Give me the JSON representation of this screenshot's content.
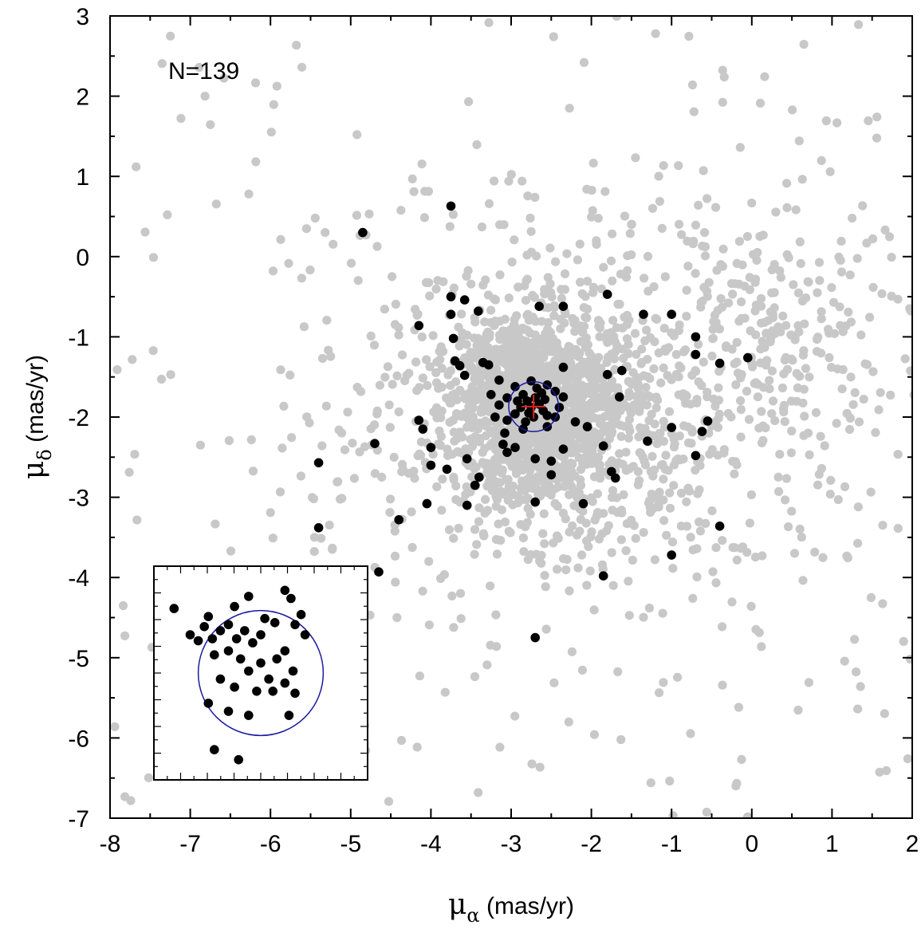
{
  "chart_data": {
    "type": "scatter",
    "title": "",
    "annotation": "N=139",
    "xlabel": {
      "symbol": "μ",
      "subscript": "α",
      "unit": " (mas/yr)"
    },
    "ylabel": {
      "symbol": "μ",
      "subscript": "δ",
      "unit": " (mas/yr)"
    },
    "xlim": [
      -8,
      2
    ],
    "ylim": [
      -7,
      3
    ],
    "xticks": [
      "-8",
      "-7",
      "-6",
      "-5",
      "-4",
      "-3",
      "-2",
      "-1",
      "0",
      "1",
      "2"
    ],
    "yticks": [
      "-7",
      "-6",
      "-5",
      "-4",
      "-3",
      "-2",
      "-1",
      "0",
      "1",
      "2",
      "3"
    ],
    "grid": false,
    "colors": {
      "field": "#c8c8c8",
      "members": "#000000",
      "circle": "#1a1aa0",
      "center": "#e02020"
    },
    "series": [
      {
        "role": "field stars",
        "approx_count": 2500,
        "distribution": "dense cloud centred near (-2.7, -1.9), broadly extending over the full axes range"
      },
      {
        "role": "members",
        "points": [
          [
            -3.75,
            0.63
          ],
          [
            -4.85,
            0.3
          ],
          [
            -3.75,
            -0.5
          ],
          [
            -3.58,
            -0.54
          ],
          [
            -3.41,
            -0.68
          ],
          [
            -2.65,
            -0.62
          ],
          [
            -2.35,
            -0.62
          ],
          [
            -1.8,
            -0.47
          ],
          [
            -1.35,
            -0.72
          ],
          [
            -1.0,
            -0.72
          ],
          [
            -4.15,
            -0.86
          ],
          [
            -3.75,
            -0.72
          ],
          [
            -3.72,
            -1.02
          ],
          [
            -3.7,
            -1.3
          ],
          [
            -3.64,
            -1.36
          ],
          [
            -3.35,
            -1.32
          ],
          [
            -3.58,
            -1.48
          ],
          [
            -3.28,
            -1.35
          ],
          [
            -2.35,
            -1.38
          ],
          [
            -1.62,
            -1.42
          ],
          [
            -1.8,
            -1.47
          ],
          [
            -0.7,
            -1.0
          ],
          [
            -0.7,
            -1.22
          ],
          [
            -0.4,
            -1.33
          ],
          [
            -0.05,
            -1.26
          ],
          [
            -3.15,
            -1.54
          ],
          [
            -3.25,
            -1.72
          ],
          [
            -3.05,
            -1.76
          ],
          [
            -2.95,
            -1.62
          ],
          [
            -3.15,
            -1.85
          ],
          [
            -3.2,
            -2.0
          ],
          [
            -3.05,
            -2.04
          ],
          [
            -2.95,
            -1.96
          ],
          [
            -2.75,
            -1.55
          ],
          [
            -2.55,
            -1.6
          ],
          [
            -2.45,
            -1.68
          ],
          [
            -2.35,
            -1.75
          ],
          [
            -2.4,
            -1.88
          ],
          [
            -2.45,
            -2.0
          ],
          [
            -2.55,
            -2.12
          ],
          [
            -2.85,
            -2.15
          ],
          [
            -3.08,
            -2.2
          ],
          [
            -3.1,
            -2.34
          ],
          [
            -3.05,
            -2.44
          ],
          [
            -2.95,
            -2.38
          ],
          [
            -2.7,
            -2.52
          ],
          [
            -2.5,
            -2.55
          ],
          [
            -2.5,
            -2.72
          ],
          [
            -2.35,
            -2.4
          ],
          [
            -2.2,
            -2.06
          ],
          [
            -2.05,
            -2.12
          ],
          [
            -1.65,
            -1.75
          ],
          [
            -1.85,
            -2.36
          ],
          [
            -1.75,
            -2.68
          ],
          [
            -1.7,
            -2.76
          ],
          [
            -1.3,
            -2.3
          ],
          [
            -1.0,
            -2.13
          ],
          [
            -0.55,
            -2.05
          ],
          [
            -0.62,
            -2.18
          ],
          [
            -0.7,
            -2.48
          ],
          [
            -0.4,
            -3.36
          ],
          [
            -1.0,
            -3.72
          ],
          [
            -1.85,
            -3.98
          ],
          [
            -2.1,
            -3.08
          ],
          [
            -2.7,
            -3.06
          ],
          [
            -2.7,
            -4.75
          ],
          [
            -3.55,
            -3.1
          ],
          [
            -3.45,
            -2.85
          ],
          [
            -3.4,
            -2.75
          ],
          [
            -3.55,
            -2.52
          ],
          [
            -3.8,
            -2.65
          ],
          [
            -4.0,
            -2.6
          ],
          [
            -4.0,
            -2.38
          ],
          [
            -4.1,
            -2.15
          ],
          [
            -4.15,
            -2.04
          ],
          [
            -4.05,
            -3.08
          ],
          [
            -4.4,
            -3.28
          ],
          [
            -4.7,
            -2.33
          ],
          [
            -5.4,
            -2.57
          ],
          [
            -5.4,
            -3.38
          ],
          [
            -4.65,
            -3.93
          ],
          [
            -2.85,
            -1.72
          ],
          [
            -2.8,
            -1.8
          ],
          [
            -2.75,
            -1.88
          ],
          [
            -2.7,
            -1.76
          ],
          [
            -2.65,
            -1.84
          ],
          [
            -2.6,
            -1.92
          ],
          [
            -2.62,
            -1.7
          ],
          [
            -2.78,
            -1.95
          ],
          [
            -2.72,
            -2.0
          ],
          [
            -2.88,
            -1.88
          ],
          [
            -2.58,
            -1.78
          ],
          [
            -2.68,
            -1.64
          ],
          [
            -2.92,
            -1.8
          ],
          [
            -2.82,
            -2.06
          ],
          [
            -2.55,
            -1.98
          ]
        ]
      }
    ],
    "circle": {
      "center": [
        -2.72,
        -1.87
      ],
      "radius": 0.31
    },
    "center_marker": [
      -2.72,
      -1.87
    ],
    "inset": {
      "description": "zoom-in on the central concentration",
      "xlim": [
        -3.25,
        -2.19
      ],
      "ylim": [
        -2.4,
        -1.34
      ],
      "circle": {
        "center": [
          -2.72,
          -1.87
        ],
        "radius": 0.31
      },
      "points": [
        [
          -3.15,
          -1.55
        ],
        [
          -3.07,
          -1.68
        ],
        [
          -2.98,
          -1.59
        ],
        [
          -2.85,
          -1.54
        ],
        [
          -2.78,
          -1.49
        ],
        [
          -2.6,
          -1.46
        ],
        [
          -2.57,
          -1.5
        ],
        [
          -2.55,
          -1.63
        ],
        [
          -2.52,
          -1.58
        ],
        [
          -2.5,
          -1.68
        ],
        [
          -2.65,
          -1.62
        ],
        [
          -2.7,
          -1.6
        ],
        [
          -2.72,
          -1.68
        ],
        [
          -2.76,
          -1.72
        ],
        [
          -2.8,
          -1.66
        ],
        [
          -2.84,
          -1.7
        ],
        [
          -2.88,
          -1.63
        ],
        [
          -2.92,
          -1.66
        ],
        [
          -2.96,
          -1.7
        ],
        [
          -3.0,
          -1.64
        ],
        [
          -3.03,
          -1.71
        ],
        [
          -2.95,
          -1.78
        ],
        [
          -2.88,
          -1.76
        ],
        [
          -2.82,
          -1.8
        ],
        [
          -2.78,
          -1.86
        ],
        [
          -2.72,
          -1.82
        ],
        [
          -2.68,
          -1.9
        ],
        [
          -2.64,
          -1.8
        ],
        [
          -2.6,
          -1.76
        ],
        [
          -2.56,
          -1.86
        ],
        [
          -2.6,
          -1.92
        ],
        [
          -2.66,
          -1.96
        ],
        [
          -2.74,
          -1.96
        ],
        [
          -2.85,
          -1.94
        ],
        [
          -2.92,
          -1.9
        ],
        [
          -2.98,
          -2.02
        ],
        [
          -2.88,
          -2.06
        ],
        [
          -2.78,
          -2.08
        ],
        [
          -2.55,
          -1.97
        ],
        [
          -2.58,
          -2.08
        ],
        [
          -2.95,
          -2.25
        ],
        [
          -2.83,
          -2.3
        ],
        [
          -2.88,
          -2.42
        ]
      ]
    }
  }
}
